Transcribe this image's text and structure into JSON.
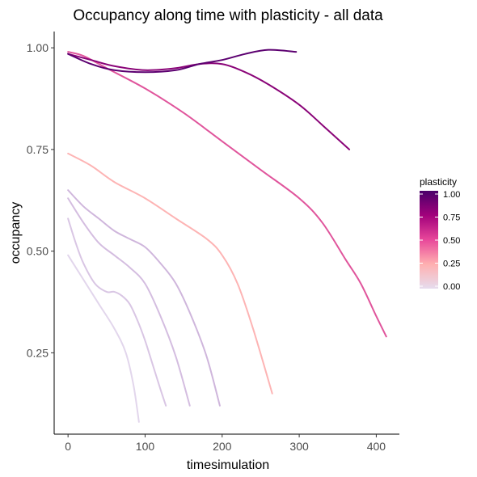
{
  "chart_data": {
    "type": "line",
    "title": "Occupancy along time with plasticity - all data",
    "xlabel": "timesimulation",
    "ylabel": "occupancy",
    "xlim": [
      -18,
      430
    ],
    "ylim": [
      0.05,
      1.04
    ],
    "x_ticks": [
      0,
      100,
      200,
      300,
      400
    ],
    "y_ticks": [
      0.25,
      0.5,
      0.75,
      1.0
    ],
    "x_tick_labels": [
      "0",
      "100",
      "200",
      "300",
      "400"
    ],
    "y_tick_labels": [
      "0.25",
      "0.50",
      "0.75",
      "1.00"
    ],
    "grid": false,
    "legend": {
      "title": "plasticity",
      "position": "right",
      "labels": [
        "1.00",
        "0.75",
        "0.50",
        "0.25",
        "0.00"
      ],
      "values": [
        1.0,
        0.75,
        0.5,
        0.25,
        0.0
      ],
      "color_stops": [
        "#e6dcee",
        "#ffb0b0",
        "#e8479a",
        "#a2017c",
        "#4a006a"
      ]
    },
    "series": [
      {
        "plasticity": 0.0,
        "color": "#e2d6ec",
        "x": [
          0,
          20,
          40,
          60,
          75,
          85,
          92
        ],
        "y": [
          0.49,
          0.43,
          0.37,
          0.31,
          0.25,
          0.17,
          0.08
        ]
      },
      {
        "plasticity": 0.05,
        "color": "#d9c6e4",
        "x": [
          0,
          10,
          20,
          35,
          50,
          60,
          70,
          80,
          90,
          100,
          110,
          120,
          127
        ],
        "y": [
          0.58,
          0.52,
          0.47,
          0.42,
          0.4,
          0.4,
          0.39,
          0.37,
          0.33,
          0.28,
          0.22,
          0.16,
          0.12
        ]
      },
      {
        "plasticity": 0.1,
        "color": "#d4bde0",
        "x": [
          0,
          20,
          40,
          60,
          80,
          100,
          120,
          140,
          158
        ],
        "y": [
          0.63,
          0.57,
          0.52,
          0.49,
          0.46,
          0.42,
          0.34,
          0.24,
          0.12
        ]
      },
      {
        "plasticity": 0.15,
        "color": "#cfb6dc",
        "x": [
          0,
          20,
          40,
          60,
          80,
          100,
          120,
          140,
          160,
          180,
          197
        ],
        "y": [
          0.65,
          0.61,
          0.58,
          0.55,
          0.53,
          0.51,
          0.47,
          0.42,
          0.34,
          0.24,
          0.12
        ]
      },
      {
        "plasticity": 0.3,
        "color": "#fdb4b4",
        "x": [
          0,
          30,
          60,
          100,
          140,
          180,
          200,
          220,
          240,
          265
        ],
        "y": [
          0.74,
          0.71,
          0.67,
          0.63,
          0.58,
          0.53,
          0.49,
          0.42,
          0.31,
          0.15
        ]
      },
      {
        "plasticity": 0.6,
        "color": "#e0559c",
        "x": [
          0,
          20,
          50,
          100,
          150,
          200,
          250,
          300,
          330,
          360,
          380,
          400,
          413
        ],
        "y": [
          0.99,
          0.98,
          0.95,
          0.9,
          0.84,
          0.77,
          0.7,
          0.63,
          0.57,
          0.48,
          0.42,
          0.34,
          0.29
        ]
      },
      {
        "plasticity": 0.85,
        "color": "#8a0478",
        "x": [
          0,
          30,
          60,
          100,
          140,
          170,
          200,
          230,
          260,
          300,
          330,
          365
        ],
        "y": [
          0.985,
          0.97,
          0.955,
          0.945,
          0.95,
          0.96,
          0.96,
          0.94,
          0.91,
          0.86,
          0.81,
          0.75
        ]
      },
      {
        "plasticity": 1.0,
        "color": "#5c0070",
        "x": [
          0,
          30,
          60,
          100,
          140,
          170,
          200,
          230,
          260,
          296
        ],
        "y": [
          0.985,
          0.96,
          0.945,
          0.94,
          0.945,
          0.96,
          0.97,
          0.985,
          0.995,
          0.99
        ]
      }
    ]
  }
}
